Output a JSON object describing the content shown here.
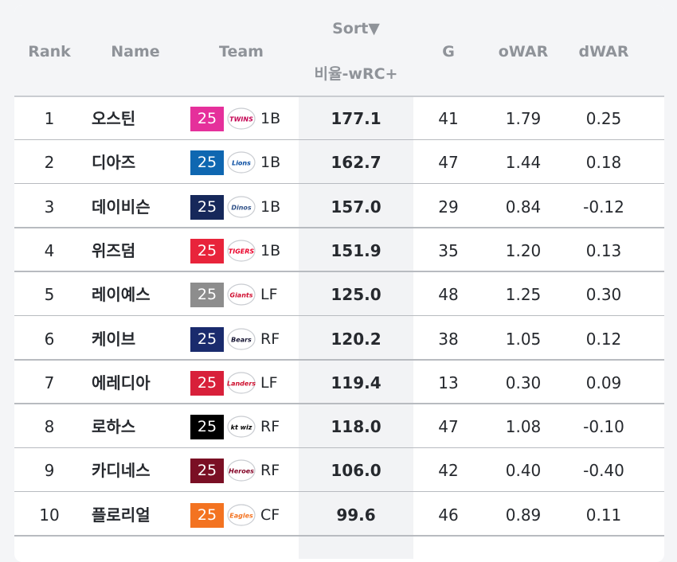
{
  "table": {
    "headers": {
      "rank": "Rank",
      "name": "Name",
      "team": "Team",
      "sort": "Sort▼",
      "metric": "비율-wRC+",
      "games": "G",
      "owar": "oWAR",
      "dwar": "dWAR"
    },
    "rows": [
      {
        "rank": "1",
        "name": "오스틴",
        "badge": "25",
        "badge_color": "#e5309b",
        "logo": "TWINS",
        "logo_color": "#c30452",
        "pos": "1B",
        "war": "177.1",
        "g": "41",
        "owar": "1.79",
        "dwar": "0.25"
      },
      {
        "rank": "2",
        "name": "디아즈",
        "badge": "25",
        "badge_color": "#0f67b1",
        "logo": "Lions",
        "logo_color": "#074ca1",
        "pos": "1B",
        "war": "162.7",
        "g": "47",
        "owar": "1.44",
        "dwar": "0.18"
      },
      {
        "rank": "3",
        "name": "데이비슨",
        "badge": "25",
        "badge_color": "#16285a",
        "logo": "Dinos",
        "logo_color": "#315288",
        "pos": "1B",
        "war": "157.0",
        "g": "29",
        "owar": "0.84",
        "dwar": "-0.12"
      },
      {
        "rank": "4",
        "name": "위즈덤",
        "badge": "25",
        "badge_color": "#e8243b",
        "logo": "TIGERS",
        "logo_color": "#ea0029",
        "pos": "1B",
        "war": "151.9",
        "g": "35",
        "owar": "1.20",
        "dwar": "0.13"
      },
      {
        "rank": "5",
        "name": "레이예스",
        "badge": "25",
        "badge_color": "#8d8d8d",
        "logo": "Giants",
        "logo_color": "#d00f31",
        "pos": "LF",
        "war": "125.0",
        "g": "48",
        "owar": "1.25",
        "dwar": "0.30"
      },
      {
        "rank": "6",
        "name": "케이브",
        "badge": "25",
        "badge_color": "#1a2b6d",
        "logo": "Bears",
        "logo_color": "#131230",
        "pos": "RF",
        "war": "120.2",
        "g": "38",
        "owar": "1.05",
        "dwar": "0.12"
      },
      {
        "rank": "7",
        "name": "에레디아",
        "badge": "25",
        "badge_color": "#d8203a",
        "logo": "Landers",
        "logo_color": "#ce0e2d",
        "pos": "LF",
        "war": "119.4",
        "g": "13",
        "owar": "0.30",
        "dwar": "0.09"
      },
      {
        "rank": "8",
        "name": "로하스",
        "badge": "25",
        "badge_color": "#000000",
        "logo": "kt wiz",
        "logo_color": "#000000",
        "pos": "RF",
        "war": "118.0",
        "g": "47",
        "owar": "1.08",
        "dwar": "-0.10"
      },
      {
        "rank": "9",
        "name": "카디네스",
        "badge": "25",
        "badge_color": "#7a0f24",
        "logo": "Heroes",
        "logo_color": "#820024",
        "pos": "RF",
        "war": "106.0",
        "g": "42",
        "owar": "0.40",
        "dwar": "-0.40"
      },
      {
        "rank": "10",
        "name": "플로리얼",
        "badge": "25",
        "badge_color": "#f37321",
        "logo": "Eagles",
        "logo_color": "#f37321",
        "pos": "CF",
        "war": "99.6",
        "g": "46",
        "owar": "0.89",
        "dwar": "0.11"
      }
    ]
  }
}
